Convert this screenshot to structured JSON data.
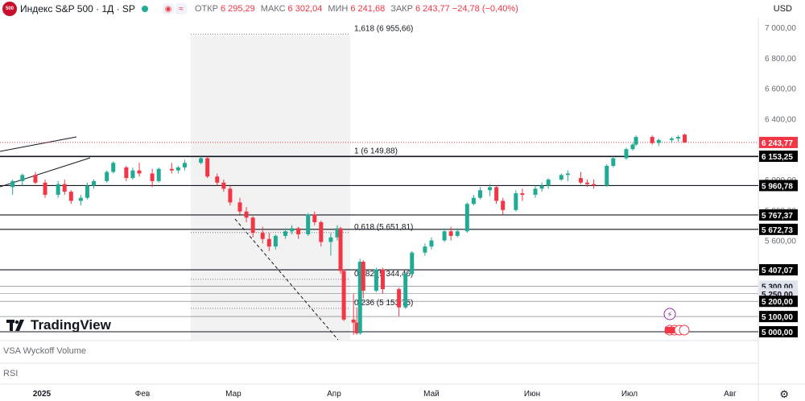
{
  "header": {
    "logo_text": "500",
    "title": "Индекс S&P 500 · 1Д · SP",
    "ohlc": [
      {
        "key": "ОТКР",
        "value": "6 295,29"
      },
      {
        "key": "МАКС",
        "value": "6 302,04"
      },
      {
        "key": "МИН",
        "value": "6 241,68"
      },
      {
        "key": "ЗАКР",
        "value": "6 243,77 −24,78 (−0,40%)"
      }
    ],
    "currency": "USD"
  },
  "branding": {
    "name": "TradingView"
  },
  "panes": {
    "volume_label": "VSA Wyckoff Volume",
    "rsi_label": "RSI"
  },
  "colors": {
    "up": "#22ab94",
    "down": "#f23645",
    "price_line": "#f23645",
    "fib_zone": "#f2f2f2"
  },
  "chart_data": {
    "type": "candlestick",
    "y_axis": {
      "min": 4950,
      "max": 7050,
      "ticks": [
        "7 000,00",
        "6 800,00",
        "6 600,00",
        "6 400,00",
        "6 000,00",
        "5 800,00",
        "5 600,00"
      ],
      "tick_values": [
        7000,
        6800,
        6600,
        6400,
        6000,
        5800,
        5600
      ]
    },
    "x_axis": {
      "labels": [
        "2025",
        "Фев",
        "Мар",
        "Апр",
        "Май",
        "Июн",
        "Июл",
        "Авг"
      ],
      "dates": [
        "2025-01-01",
        "2025-02-01",
        "2025-03-01",
        "2025-04-01",
        "2025-05-01",
        "2025-06-01",
        "2025-07-01",
        "2025-08-01"
      ]
    },
    "last_price": {
      "value": 6243.77,
      "label": "6 243,77"
    },
    "level_lines": [
      {
        "value": 6153.25,
        "label": "6 153,25"
      },
      {
        "value": 5960.78,
        "label": "5 960,78"
      },
      {
        "value": 5767.37,
        "label": "5 767,37"
      },
      {
        "value": 5672.73,
        "label": "5 672,73"
      },
      {
        "value": 5407.07,
        "label": "5 407,07"
      },
      {
        "value": 5300.0,
        "label": "5 300,00"
      },
      {
        "value": 5250.0,
        "label": "5 250,00"
      },
      {
        "value": 5200.0,
        "label": "5 200,00"
      },
      {
        "value": 5100.0,
        "label": "5 100,00"
      },
      {
        "value": 5000.0,
        "label": "5 000,00"
      }
    ],
    "fibonacci": [
      {
        "ratio": "1,618",
        "value": 6955.66,
        "label": "1,618 (6 955,66)"
      },
      {
        "ratio": "1",
        "value": 6149.88,
        "label": "1 (6 149,88)"
      },
      {
        "ratio": "0,618",
        "value": 5651.81,
        "label": "0,618 (5 651,81)"
      },
      {
        "ratio": "0,382",
        "value": 5344.46,
        "label": "0,382 (5 344,46)"
      },
      {
        "ratio": "0,236",
        "value": 5153.75,
        "label": "0,236 (5 153,75)"
      }
    ],
    "candles": [
      {
        "date": "2024-12-23",
        "o": 5950,
        "h": 6000,
        "l": 5900,
        "c": 5990
      },
      {
        "date": "2024-12-26",
        "o": 5990,
        "h": 6040,
        "l": 5960,
        "c": 6030
      },
      {
        "date": "2024-12-30",
        "o": 6030,
        "h": 6050,
        "l": 5970,
        "c": 5980
      },
      {
        "date": "2025-01-02",
        "o": 5980,
        "h": 6000,
        "l": 5880,
        "c": 5900
      },
      {
        "date": "2025-01-06",
        "o": 5900,
        "h": 5990,
        "l": 5880,
        "c": 5970
      },
      {
        "date": "2025-01-08",
        "o": 5970,
        "h": 6000,
        "l": 5900,
        "c": 5920
      },
      {
        "date": "2025-01-10",
        "o": 5920,
        "h": 5930,
        "l": 5840,
        "c": 5860
      },
      {
        "date": "2025-01-13",
        "o": 5860,
        "h": 5900,
        "l": 5830,
        "c": 5880
      },
      {
        "date": "2025-01-15",
        "o": 5880,
        "h": 5980,
        "l": 5870,
        "c": 5960
      },
      {
        "date": "2025-01-17",
        "o": 5960,
        "h": 6000,
        "l": 5940,
        "c": 5990
      },
      {
        "date": "2025-01-21",
        "o": 5990,
        "h": 6060,
        "l": 5980,
        "c": 6050
      },
      {
        "date": "2025-01-23",
        "o": 6050,
        "h": 6120,
        "l": 6040,
        "c": 6110
      },
      {
        "date": "2025-01-27",
        "o": 6080,
        "h": 6090,
        "l": 5990,
        "c": 6010
      },
      {
        "date": "2025-01-29",
        "o": 6010,
        "h": 6080,
        "l": 6000,
        "c": 6060
      },
      {
        "date": "2025-01-31",
        "o": 6060,
        "h": 6110,
        "l": 6020,
        "c": 6040
      },
      {
        "date": "2025-02-04",
        "o": 6040,
        "h": 6070,
        "l": 5950,
        "c": 5990
      },
      {
        "date": "2025-02-06",
        "o": 5990,
        "h": 6080,
        "l": 5980,
        "c": 6070
      },
      {
        "date": "2025-02-10",
        "o": 6070,
        "h": 6110,
        "l": 6040,
        "c": 6060
      },
      {
        "date": "2025-02-12",
        "o": 6060,
        "h": 6090,
        "l": 6040,
        "c": 6080
      },
      {
        "date": "2025-02-14",
        "o": 6080,
        "h": 6130,
        "l": 6060,
        "c": 6110
      },
      {
        "date": "2025-02-19",
        "o": 6110,
        "h": 6150,
        "l": 6100,
        "c": 6140
      },
      {
        "date": "2025-02-21",
        "o": 6140,
        "h": 6150,
        "l": 6010,
        "c": 6020
      },
      {
        "date": "2025-02-24",
        "o": 6020,
        "h": 6040,
        "l": 5960,
        "c": 5980
      },
      {
        "date": "2025-02-26",
        "o": 5980,
        "h": 6000,
        "l": 5920,
        "c": 5940
      },
      {
        "date": "2025-02-28",
        "o": 5940,
        "h": 5960,
        "l": 5830,
        "c": 5850
      },
      {
        "date": "2025-03-03",
        "o": 5850,
        "h": 5880,
        "l": 5770,
        "c": 5790
      },
      {
        "date": "2025-03-05",
        "o": 5790,
        "h": 5820,
        "l": 5720,
        "c": 5750
      },
      {
        "date": "2025-03-07",
        "o": 5750,
        "h": 5760,
        "l": 5620,
        "c": 5650
      },
      {
        "date": "2025-03-10",
        "o": 5650,
        "h": 5690,
        "l": 5580,
        "c": 5610
      },
      {
        "date": "2025-03-12",
        "o": 5610,
        "h": 5650,
        "l": 5530,
        "c": 5560
      },
      {
        "date": "2025-03-14",
        "o": 5560,
        "h": 5640,
        "l": 5540,
        "c": 5630
      },
      {
        "date": "2025-03-17",
        "o": 5630,
        "h": 5680,
        "l": 5610,
        "c": 5660
      },
      {
        "date": "2025-03-19",
        "o": 5660,
        "h": 5700,
        "l": 5640,
        "c": 5680
      },
      {
        "date": "2025-03-21",
        "o": 5680,
        "h": 5690,
        "l": 5610,
        "c": 5640
      },
      {
        "date": "2025-03-24",
        "o": 5640,
        "h": 5780,
        "l": 5630,
        "c": 5770
      },
      {
        "date": "2025-03-26",
        "o": 5770,
        "h": 5790,
        "l": 5700,
        "c": 5720
      },
      {
        "date": "2025-03-28",
        "o": 5720,
        "h": 5730,
        "l": 5560,
        "c": 5590
      },
      {
        "date": "2025-03-31",
        "o": 5590,
        "h": 5650,
        "l": 5500,
        "c": 5620
      },
      {
        "date": "2025-04-02",
        "o": 5620,
        "h": 5700,
        "l": 5600,
        "c": 5680
      },
      {
        "date": "2025-04-03",
        "o": 5680,
        "h": 5690,
        "l": 5380,
        "c": 5400
      },
      {
        "date": "2025-04-04",
        "o": 5400,
        "h": 5410,
        "l": 5070,
        "c": 5080
      },
      {
        "date": "2025-04-07",
        "o": 5080,
        "h": 5250,
        "l": 4980,
        "c": 5060
      },
      {
        "date": "2025-04-08",
        "o": 5060,
        "h": 5160,
        "l": 4980,
        "c": 4990
      },
      {
        "date": "2025-04-09",
        "o": 4990,
        "h": 5480,
        "l": 4980,
        "c": 5460
      },
      {
        "date": "2025-04-10",
        "o": 5460,
        "h": 5470,
        "l": 5220,
        "c": 5270
      },
      {
        "date": "2025-04-14",
        "o": 5270,
        "h": 5420,
        "l": 5260,
        "c": 5410
      },
      {
        "date": "2025-04-16",
        "o": 5410,
        "h": 5420,
        "l": 5250,
        "c": 5280
      },
      {
        "date": "2025-04-21",
        "o": 5280,
        "h": 5290,
        "l": 5100,
        "c": 5160
      },
      {
        "date": "2025-04-23",
        "o": 5160,
        "h": 5390,
        "l": 5150,
        "c": 5380
      },
      {
        "date": "2025-04-25",
        "o": 5380,
        "h": 5530,
        "l": 5370,
        "c": 5520
      },
      {
        "date": "2025-04-29",
        "o": 5520,
        "h": 5580,
        "l": 5500,
        "c": 5560
      },
      {
        "date": "2025-05-01",
        "o": 5560,
        "h": 5620,
        "l": 5540,
        "c": 5600
      },
      {
        "date": "2025-05-05",
        "o": 5600,
        "h": 5680,
        "l": 5590,
        "c": 5660
      },
      {
        "date": "2025-05-07",
        "o": 5660,
        "h": 5690,
        "l": 5600,
        "c": 5630
      },
      {
        "date": "2025-05-09",
        "o": 5630,
        "h": 5680,
        "l": 5620,
        "c": 5660
      },
      {
        "date": "2025-05-12",
        "o": 5660,
        "h": 5850,
        "l": 5650,
        "c": 5840
      },
      {
        "date": "2025-05-14",
        "o": 5840,
        "h": 5900,
        "l": 5830,
        "c": 5880
      },
      {
        "date": "2025-05-16",
        "o": 5880,
        "h": 5950,
        "l": 5870,
        "c": 5930
      },
      {
        "date": "2025-05-19",
        "o": 5930,
        "h": 5970,
        "l": 5890,
        "c": 5950
      },
      {
        "date": "2025-05-21",
        "o": 5950,
        "h": 5960,
        "l": 5840,
        "c": 5860
      },
      {
        "date": "2025-05-23",
        "o": 5860,
        "h": 5880,
        "l": 5770,
        "c": 5800
      },
      {
        "date": "2025-05-27",
        "o": 5800,
        "h": 5930,
        "l": 5790,
        "c": 5910
      },
      {
        "date": "2025-05-29",
        "o": 5910,
        "h": 5940,
        "l": 5860,
        "c": 5900
      },
      {
        "date": "2025-06-02",
        "o": 5900,
        "h": 5960,
        "l": 5880,
        "c": 5940
      },
      {
        "date": "2025-06-04",
        "o": 5940,
        "h": 5980,
        "l": 5920,
        "c": 5960
      },
      {
        "date": "2025-06-06",
        "o": 5960,
        "h": 6010,
        "l": 5940,
        "c": 6000
      },
      {
        "date": "2025-06-10",
        "o": 6000,
        "h": 6040,
        "l": 5990,
        "c": 6030
      },
      {
        "date": "2025-06-12",
        "o": 6030,
        "h": 6060,
        "l": 5990,
        "c": 6040
      },
      {
        "date": "2025-06-16",
        "o": 6010,
        "h": 6050,
        "l": 5970,
        "c": 5980
      },
      {
        "date": "2025-06-18",
        "o": 5980,
        "h": 6000,
        "l": 5950,
        "c": 5970
      },
      {
        "date": "2025-06-20",
        "o": 5970,
        "h": 6000,
        "l": 5940,
        "c": 5960
      },
      {
        "date": "2025-06-24",
        "o": 5960,
        "h": 6100,
        "l": 5950,
        "c": 6090
      },
      {
        "date": "2025-06-26",
        "o": 6090,
        "h": 6150,
        "l": 6080,
        "c": 6140
      },
      {
        "date": "2025-06-30",
        "o": 6140,
        "h": 6210,
        "l": 6130,
        "c": 6200
      },
      {
        "date": "2025-07-02",
        "o": 6200,
        "h": 6240,
        "l": 6190,
        "c": 6230
      },
      {
        "date": "2025-07-03",
        "o": 6230,
        "h": 6290,
        "l": 6220,
        "c": 6280
      },
      {
        "date": "2025-07-08",
        "o": 6280,
        "h": 6290,
        "l": 6230,
        "c": 6240
      },
      {
        "date": "2025-07-10",
        "o": 6240,
        "h": 6270,
        "l": 6220,
        "c": 6260
      },
      {
        "date": "2025-07-14",
        "o": 6260,
        "h": 6280,
        "l": 6240,
        "c": 6270
      },
      {
        "date": "2025-07-16",
        "o": 6270,
        "h": 6290,
        "l": 6250,
        "c": 6280
      },
      {
        "date": "2025-07-18",
        "o": 6295.29,
        "h": 6302.04,
        "l": 6241.68,
        "c": 6243.77
      }
    ]
  }
}
